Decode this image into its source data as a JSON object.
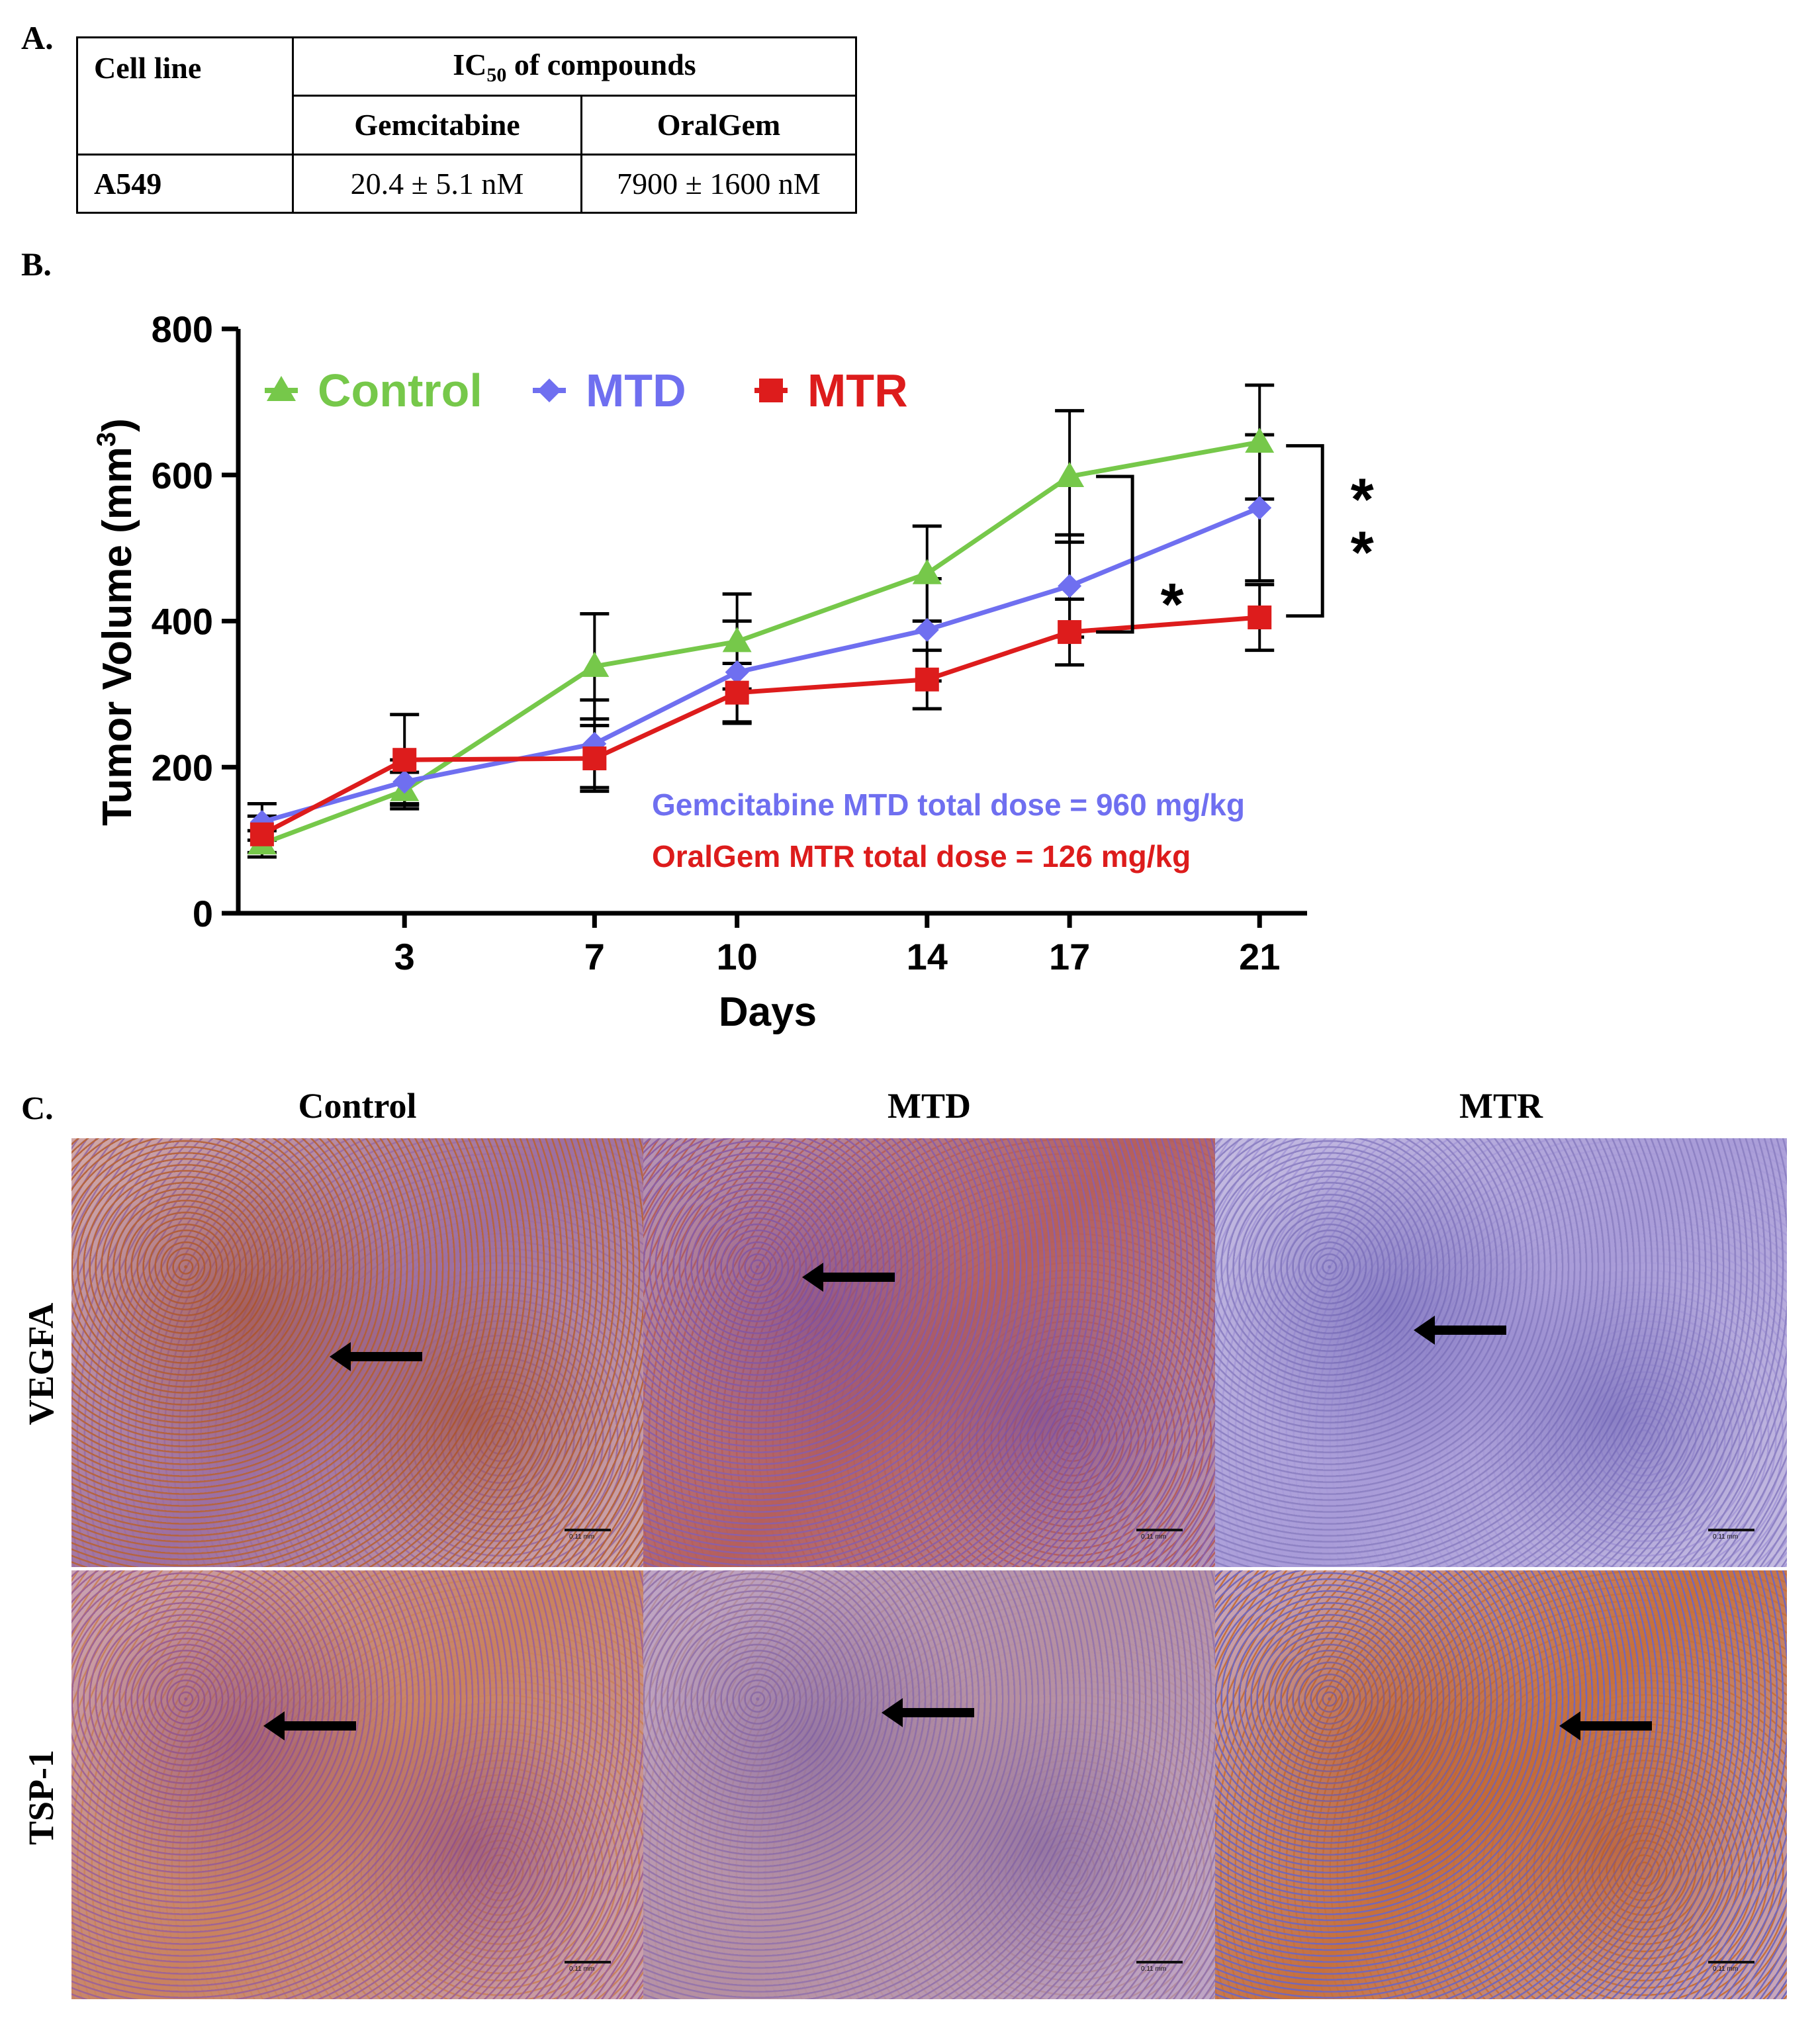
{
  "panel_labels": {
    "a": "A.",
    "b": "B.",
    "c": "C."
  },
  "table": {
    "header_cell_line": "Cell line",
    "header_ic50_prefix": "IC",
    "header_ic50_sub": "50",
    "header_ic50_suffix": " of compounds",
    "col_gemcitabine": "Gemcitabine",
    "col_oralgem": "OralGem",
    "row_cell": "A549",
    "row_gemcitabine": "20.4 ± 5.1 nM",
    "row_oralgem": "7900 ± 1600 nM"
  },
  "chart_data": {
    "type": "line",
    "ylabel_prefix": "Tumor Volume (mm",
    "ylabel_sup": "3",
    "ylabel_suffix": ")",
    "xlabel": "Days",
    "ylim": [
      0,
      800
    ],
    "yticks": [
      0,
      200,
      400,
      600,
      800
    ],
    "xlim": [
      -0.5,
      22
    ],
    "xticks": [
      3,
      7,
      10,
      14,
      17,
      21
    ],
    "series": [
      {
        "name": "Control",
        "color": "#76c84a",
        "marker": "triangle",
        "x": [
          0,
          3,
          7,
          10,
          14,
          17,
          21
        ],
        "y": [
          95,
          168,
          338,
          372,
          465,
          598,
          645
        ],
        "err": [
          18,
          25,
          72,
          65,
          65,
          90,
          78
        ]
      },
      {
        "name": "MTD",
        "color": "#6f6ff0",
        "marker": "diamond",
        "x": [
          0,
          3,
          7,
          10,
          14,
          17,
          21
        ],
        "y": [
          125,
          180,
          232,
          330,
          388,
          448,
          555
        ],
        "err": [
          25,
          30,
          60,
          70,
          70,
          70,
          100
        ]
      },
      {
        "name": "MTR",
        "color": "#dd1c1c",
        "marker": "square",
        "x": [
          0,
          3,
          7,
          10,
          14,
          17,
          21
        ],
        "y": [
          108,
          210,
          212,
          302,
          320,
          385,
          405
        ],
        "err": [
          25,
          62,
          45,
          40,
          40,
          45,
          45
        ]
      }
    ],
    "annotations": [
      {
        "text": "Gemcitabine MTD total dose = 960 mg/kg",
        "color": "#6f6ff0"
      },
      {
        "text": "OralGem MTR total dose = 126 mg/kg",
        "color": "#dd1c1c"
      }
    ],
    "significance": [
      {
        "label": "*",
        "day": 17
      },
      {
        "label": "**",
        "day": 21
      }
    ]
  },
  "micrographs": {
    "columns": [
      "Control",
      "MTD",
      "MTR"
    ],
    "rows": [
      "VEGFA",
      "TSP-1"
    ],
    "scale_text": "0.11 mm"
  }
}
